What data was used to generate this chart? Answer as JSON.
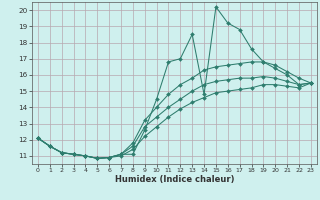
{
  "xlabel": "Humidex (Indice chaleur)",
  "background_color": "#cff0ee",
  "grid_color": "#b8a8b0",
  "line_color": "#2e7d6e",
  "xlim": [
    -0.5,
    23.5
  ],
  "ylim": [
    10.5,
    20.5
  ],
  "xticks": [
    0,
    1,
    2,
    3,
    4,
    5,
    6,
    7,
    8,
    9,
    10,
    11,
    12,
    13,
    14,
    15,
    16,
    17,
    18,
    19,
    20,
    21,
    22,
    23
  ],
  "yticks": [
    11,
    12,
    13,
    14,
    15,
    16,
    17,
    18,
    19,
    20
  ],
  "line1_x": [
    0,
    1,
    2,
    3,
    4,
    5,
    6,
    7,
    8,
    9,
    10,
    11,
    12,
    13,
    14,
    15,
    16,
    17,
    18,
    19,
    20,
    21,
    22,
    23
  ],
  "line1_y": [
    12.1,
    11.6,
    11.2,
    11.1,
    11.0,
    10.85,
    10.9,
    11.1,
    11.1,
    12.6,
    14.5,
    16.8,
    17.0,
    18.5,
    14.8,
    20.2,
    19.2,
    18.8,
    17.6,
    16.8,
    16.4,
    16.0,
    15.4,
    15.5
  ],
  "line2_x": [
    0,
    1,
    2,
    3,
    4,
    5,
    6,
    7,
    8,
    9,
    10,
    11,
    12,
    13,
    14,
    15,
    16,
    17,
    18,
    19,
    20,
    21,
    22,
    23
  ],
  "line2_y": [
    12.1,
    11.6,
    11.2,
    11.1,
    11.0,
    10.85,
    10.9,
    11.1,
    11.8,
    13.2,
    14.0,
    14.8,
    15.4,
    15.8,
    16.3,
    16.5,
    16.6,
    16.7,
    16.8,
    16.8,
    16.6,
    16.2,
    15.8,
    15.5
  ],
  "line3_x": [
    0,
    1,
    2,
    3,
    4,
    5,
    6,
    7,
    8,
    9,
    10,
    11,
    12,
    13,
    14,
    15,
    16,
    17,
    18,
    19,
    20,
    21,
    22,
    23
  ],
  "line3_y": [
    12.1,
    11.6,
    11.2,
    11.1,
    11.0,
    10.85,
    10.9,
    11.1,
    11.6,
    12.8,
    13.4,
    14.0,
    14.5,
    15.0,
    15.4,
    15.6,
    15.7,
    15.8,
    15.8,
    15.9,
    15.8,
    15.6,
    15.4,
    15.5
  ],
  "line4_x": [
    0,
    1,
    2,
    3,
    4,
    5,
    6,
    7,
    8,
    9,
    10,
    11,
    12,
    13,
    14,
    15,
    16,
    17,
    18,
    19,
    20,
    21,
    22,
    23
  ],
  "line4_y": [
    12.1,
    11.6,
    11.2,
    11.1,
    11.0,
    10.85,
    10.9,
    11.0,
    11.4,
    12.2,
    12.8,
    13.4,
    13.9,
    14.3,
    14.6,
    14.9,
    15.0,
    15.1,
    15.2,
    15.4,
    15.4,
    15.3,
    15.2,
    15.5
  ]
}
